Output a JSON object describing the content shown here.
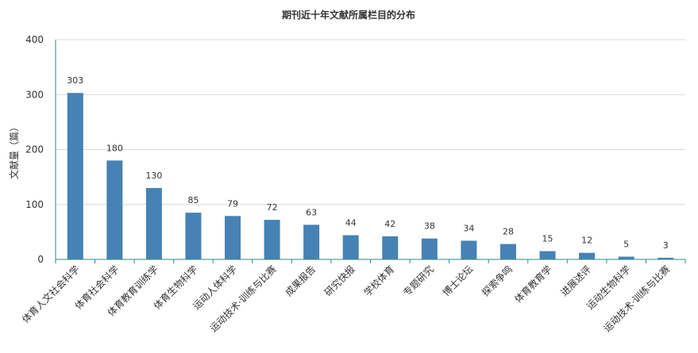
{
  "chart_data": {
    "type": "bar",
    "title": "期刊近十年文献所属栏目的分布",
    "xlabel": "",
    "ylabel": "文献量（篇）",
    "ylim": [
      0,
      400
    ],
    "yticks": [
      0,
      100,
      200,
      300,
      400
    ],
    "grid": true,
    "categories": [
      "体育人文社会科学",
      "体育社会科学",
      "体育教育训练学",
      "体育生物科学",
      "运动人体科学",
      "运动技术·训练与比赛",
      "成果报告",
      "研究快报",
      "学校体育",
      "专题研究",
      "博士论坛",
      "探索争鸣",
      "体育教育学",
      "进展述评",
      "运动生物科学",
      "运动技术·训练与比赛"
    ],
    "values": [
      303,
      180,
      130,
      85,
      79,
      72,
      63,
      44,
      42,
      38,
      34,
      28,
      15,
      12,
      5,
      3
    ],
    "colors": {
      "bar": "#4682b4",
      "axis": "#2a8a8a",
      "grid": "#d9d9d9"
    }
  }
}
